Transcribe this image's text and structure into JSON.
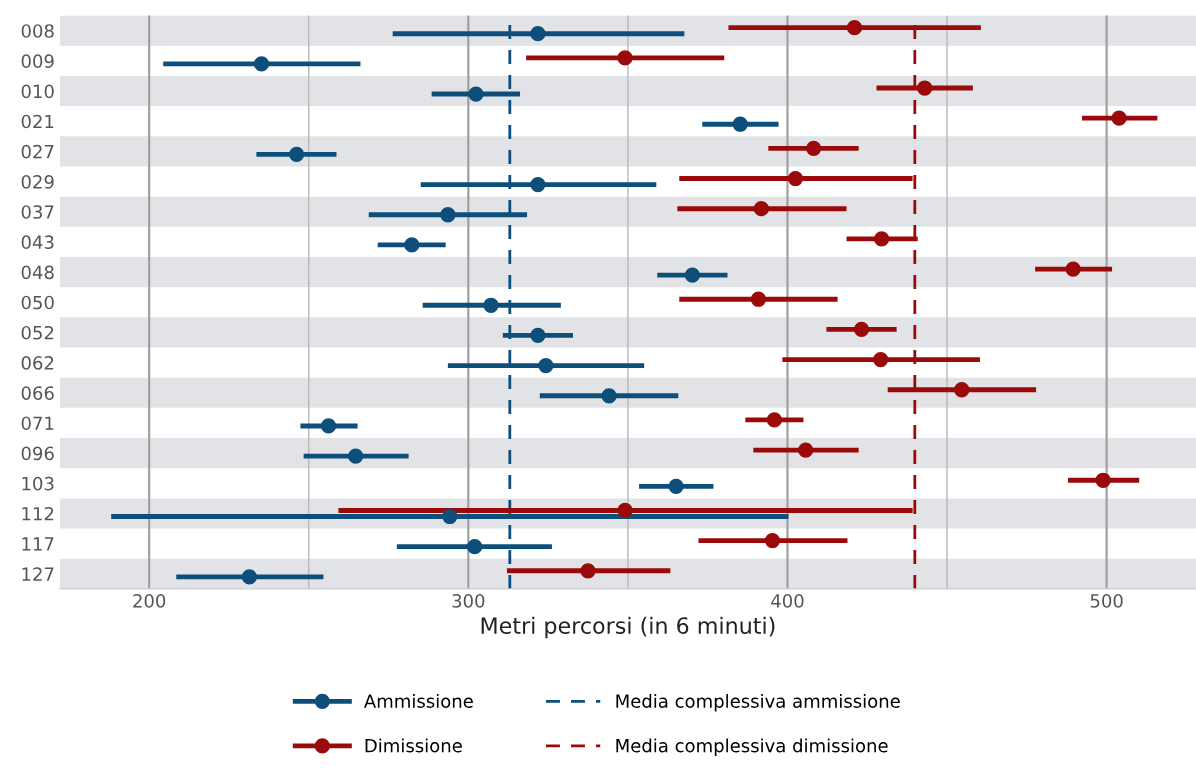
{
  "chart_data": {
    "type": "scatter",
    "orientation": "horizontal",
    "xlabel": "Metri percorsi (in 6 minuti)",
    "categories": [
      "008",
      "009",
      "010",
      "021",
      "027",
      "029",
      "037",
      "043",
      "048",
      "050",
      "052",
      "062",
      "066",
      "071",
      "096",
      "103",
      "112",
      "117",
      "127"
    ],
    "series": [
      {
        "name": "Ammissione",
        "color": "#0d4f7a",
        "values": [
          321.8,
          235.2,
          302.4,
          385.2,
          246.2,
          321.8,
          293.6,
          282.3,
          370.2,
          307.1,
          321.8,
          324.3,
          344.1,
          256.2,
          264.7,
          365.1,
          294.2,
          302.0,
          231.4
        ],
        "errors": [
          [
            276.3,
            367.7
          ],
          [
            204.4,
            266.2
          ],
          [
            288.5,
            316.2
          ],
          [
            373.3,
            397.2
          ],
          [
            233.6,
            258.7
          ],
          [
            285.1,
            358.9
          ],
          [
            268.8,
            318.4
          ],
          [
            271.6,
            292.9
          ],
          [
            359.2,
            381.2
          ],
          [
            285.7,
            329.0
          ],
          [
            310.8,
            332.8
          ],
          [
            293.6,
            355.1
          ],
          [
            322.4,
            365.8
          ],
          [
            247.4,
            265.3
          ],
          [
            248.4,
            281.3
          ],
          [
            353.5,
            376.8
          ],
          [
            188.1,
            400.3
          ],
          [
            277.6,
            326.2
          ],
          [
            208.5,
            254.6
          ]
        ]
      },
      {
        "name": "Dimissione",
        "color": "#9b0a0a",
        "values": [
          421.0,
          349.1,
          443.0,
          503.9,
          408.2,
          402.5,
          391.8,
          429.5,
          489.5,
          390.9,
          423.2,
          429.2,
          454.6,
          395.9,
          405.7,
          498.9,
          349.1,
          395.3,
          337.5
        ],
        "errors": [
          [
            381.5,
            460.6
          ],
          [
            318.1,
            380.2
          ],
          [
            427.9,
            458.1
          ],
          [
            492.3,
            515.9
          ],
          [
            394.0,
            422.3
          ],
          [
            366.1,
            439.2
          ],
          [
            365.5,
            418.5
          ],
          [
            418.5,
            440.8
          ],
          [
            477.6,
            501.7
          ],
          [
            366.1,
            415.7
          ],
          [
            412.2,
            434.2
          ],
          [
            398.4,
            460.3
          ],
          [
            431.4,
            477.9
          ],
          [
            386.8,
            405.0
          ],
          [
            389.3,
            422.3
          ],
          [
            487.9,
            510.2
          ],
          [
            259.3,
            439.2
          ],
          [
            372.1,
            418.8
          ],
          [
            312.1,
            363.3
          ]
        ]
      }
    ],
    "ref_lines": [
      {
        "axis": "x",
        "value": 313.0,
        "label": "Media complessiva ammissione",
        "color": "#0d4f7a",
        "line_style": "dashed"
      },
      {
        "axis": "x",
        "value": 439.9,
        "label": "Media complessiva dimissione",
        "color": "#9b0a0a",
        "line_style": "dashed"
      }
    ],
    "xlim": [
      172,
      528
    ],
    "xticks": [
      200,
      {
        "value": 250,
        "label": null
      },
      300,
      {
        "value": 350,
        "label": null
      },
      400,
      {
        "value": 450,
        "label": null
      },
      500
    ],
    "grid": "x",
    "marker": "circle",
    "legend": "bottom"
  }
}
